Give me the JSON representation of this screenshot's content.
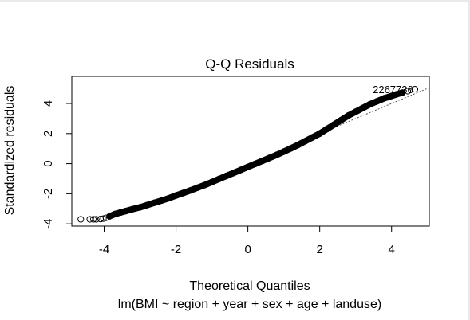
{
  "chart_data": {
    "type": "scatter",
    "title": "Q-Q Residuals",
    "xlabel": "Theoretical Quantiles",
    "subtitle": "lm(BMI ~ region + year + sex + age + landuse)",
    "ylabel": "Standardized residuals",
    "xlim": [
      -4.9,
      5.05
    ],
    "ylim": [
      -4.15,
      5.8
    ],
    "x_ticks": [
      -4,
      -2,
      0,
      2,
      4
    ],
    "y_ticks": [
      -4,
      -2,
      0,
      2,
      4
    ],
    "reference_line": {
      "intercept": 0,
      "slope": 1
    },
    "point_style": "open-circle",
    "series": [
      {
        "values": [
          [
            -4.65,
            -3.7
          ],
          [
            -4.4,
            -3.7
          ],
          [
            -4.3,
            -3.7
          ],
          [
            -4.22,
            -3.7
          ],
          [
            -4.1,
            -3.68
          ],
          [
            -4.02,
            -3.65
          ],
          [
            -3.95,
            -3.6
          ],
          [
            -3.85,
            -3.5
          ],
          [
            -3.7,
            -3.35
          ],
          [
            -3.55,
            -3.25
          ],
          [
            -3.4,
            -3.15
          ],
          [
            -3.2,
            -3.02
          ],
          [
            -3.0,
            -2.9
          ],
          [
            -2.8,
            -2.75
          ],
          [
            -2.6,
            -2.6
          ],
          [
            -2.4,
            -2.45
          ],
          [
            -2.2,
            -2.3
          ],
          [
            -2.0,
            -2.12
          ],
          [
            -1.8,
            -1.95
          ],
          [
            -1.6,
            -1.78
          ],
          [
            -1.4,
            -1.6
          ],
          [
            -1.2,
            -1.42
          ],
          [
            -1.0,
            -1.22
          ],
          [
            -0.8,
            -1.02
          ],
          [
            -0.6,
            -0.82
          ],
          [
            -0.4,
            -0.62
          ],
          [
            -0.2,
            -0.42
          ],
          [
            0.0,
            -0.22
          ],
          [
            0.2,
            -0.02
          ],
          [
            0.4,
            0.18
          ],
          [
            0.6,
            0.38
          ],
          [
            0.8,
            0.58
          ],
          [
            1.0,
            0.8
          ],
          [
            1.2,
            1.02
          ],
          [
            1.4,
            1.25
          ],
          [
            1.6,
            1.5
          ],
          [
            1.8,
            1.75
          ],
          [
            2.0,
            2.0
          ],
          [
            2.2,
            2.3
          ],
          [
            2.4,
            2.6
          ],
          [
            2.6,
            2.9
          ],
          [
            2.8,
            3.2
          ],
          [
            3.0,
            3.45
          ],
          [
            3.2,
            3.7
          ],
          [
            3.4,
            3.95
          ],
          [
            3.6,
            4.15
          ],
          [
            3.8,
            4.35
          ],
          [
            4.0,
            4.5
          ],
          [
            4.15,
            4.62
          ],
          [
            4.3,
            4.72
          ],
          [
            4.45,
            4.82
          ],
          [
            4.65,
            4.95
          ]
        ]
      }
    ],
    "point_labels": [
      "2267736"
    ]
  }
}
